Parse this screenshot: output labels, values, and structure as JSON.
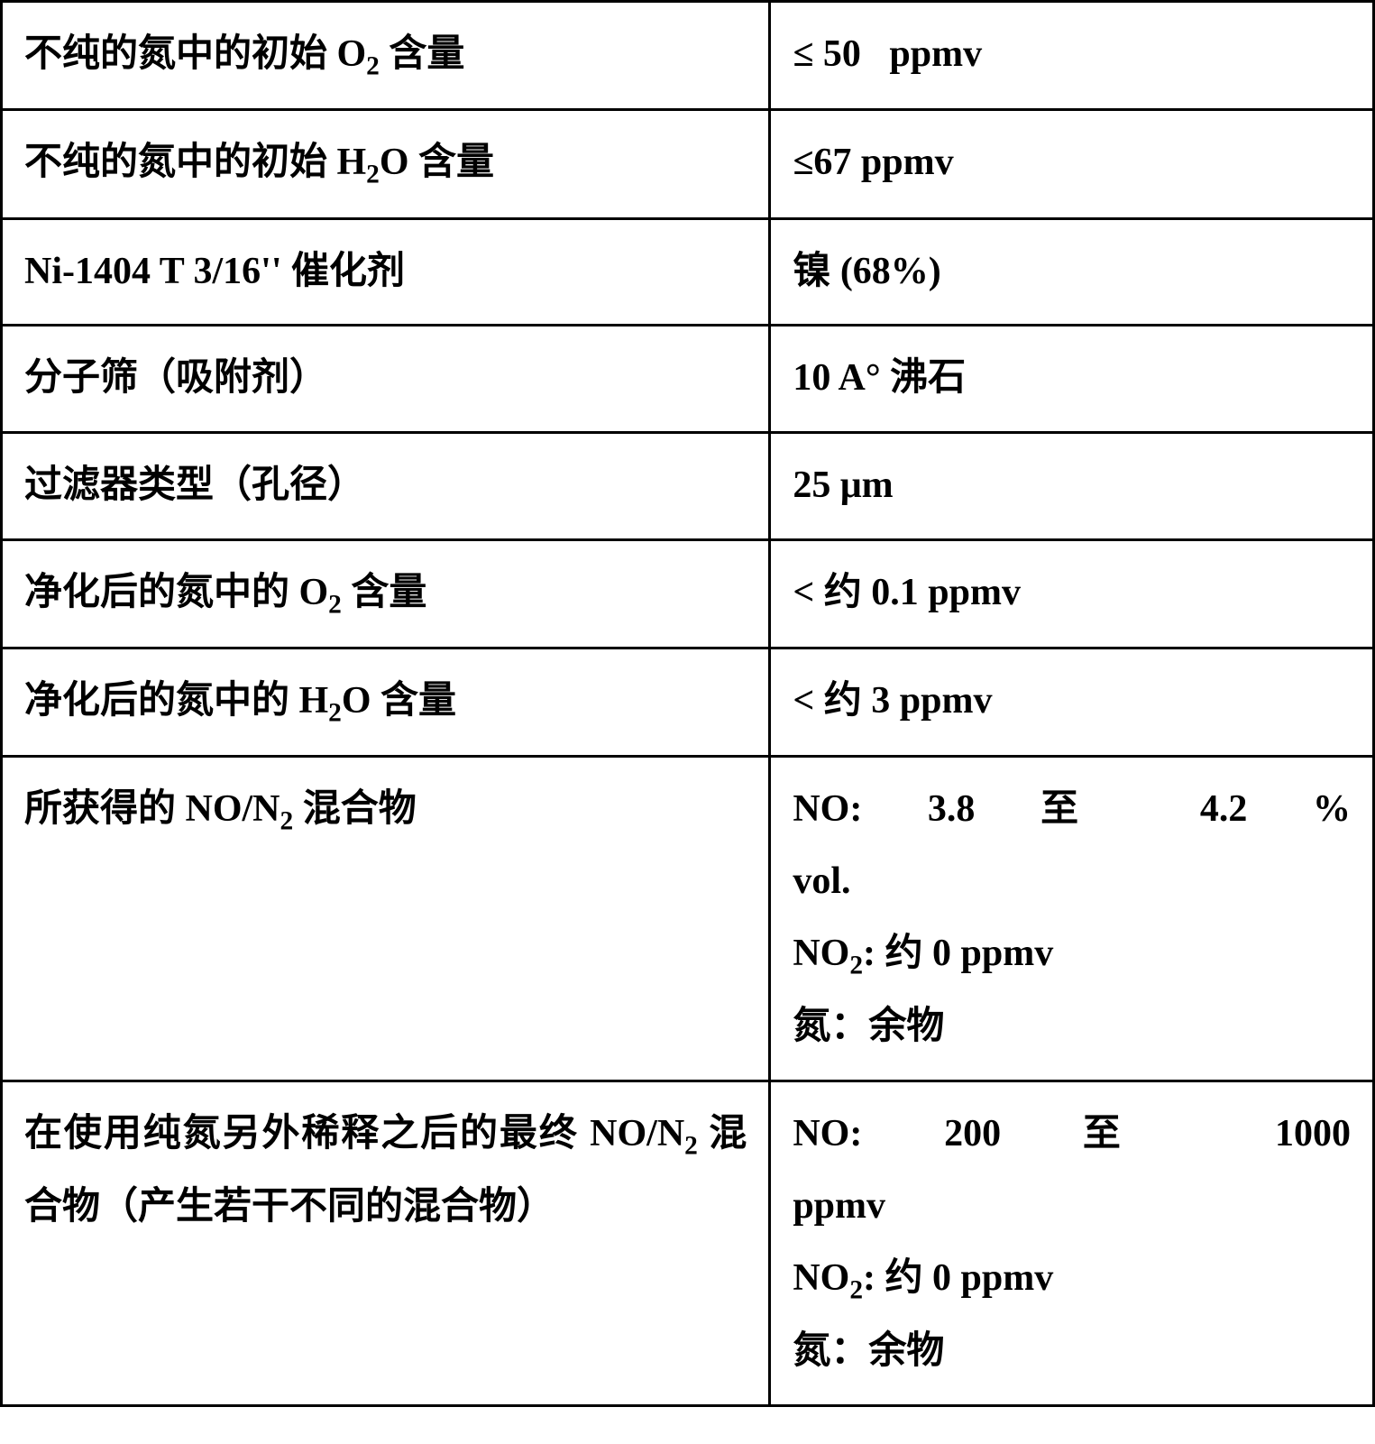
{
  "table": {
    "rows": [
      {
        "param_html": "不纯的氮中的初始 O<sub>2</sub> 含量",
        "value_html": "≤ 50&nbsp;&nbsp;&nbsp;ppmv"
      },
      {
        "param_html": "不纯的氮中的初始 H<sub>2</sub>O 含量",
        "value_html": "≤67 ppmv"
      },
      {
        "param_html": "Ni-1404 T 3/16'' 催化剂",
        "value_html": "镍 (68%)"
      },
      {
        "param_html": "分子筛（吸附剂）",
        "value_html": "10 A° 沸石"
      },
      {
        "param_html": "过滤器类型（孔径）",
        "value_html": "25 μm"
      },
      {
        "param_html": "净化后的氮中的 O<sub>2</sub> 含量",
        "value_html": "&lt; 约 0.1 ppmv"
      },
      {
        "param_html": "净化后的氮中的 H<sub>2</sub>O 含量",
        "value_html": "&lt; 约 3 ppmv"
      },
      {
        "param_html": "所获得的 NO/N<sub>2</sub> 混合物",
        "value_html": "<div class=\"spaced-just\">NO: 3.8 至 4.2 %</div>vol.<br>NO<sub>2</sub>: 约 0 ppmv<br>氮：余物"
      },
      {
        "param_html": "在使用纯氮另外稀释之后的最终 NO/N<sub>2</sub> 混合物（产生若干不同的混合物）",
        "value_html": "<div class=\"spaced-just\">NO: 200 至 1000</div>ppmv<br>NO<sub>2</sub>: 约 0 ppmv<br>氮：余物"
      }
    ],
    "border_color": "#000000",
    "background_color": "#ffffff",
    "text_color": "#000000",
    "font_size_pt": 32,
    "font_weight": "bold",
    "col_widths_pct": [
      56,
      44
    ]
  }
}
